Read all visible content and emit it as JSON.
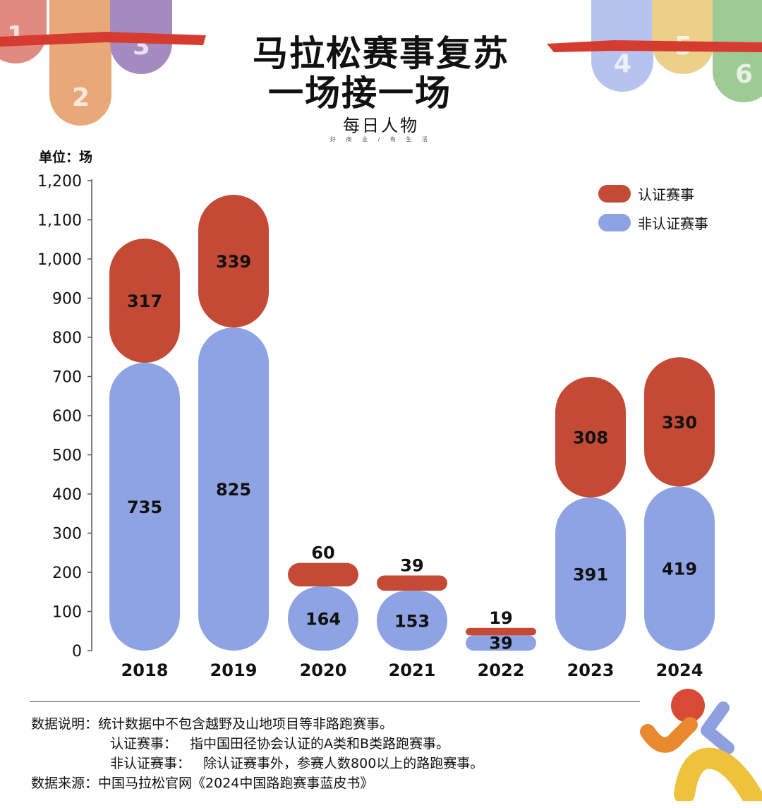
{
  "header": {
    "title_line1": "马拉松赛事复苏",
    "title_line2": "一场接一场",
    "brand": "每日人物",
    "brand_sub": "好 商 业 / 有 生 活"
  },
  "decorations": {
    "numbers": [
      "1",
      "2",
      "3",
      "4",
      "5",
      "6"
    ],
    "colors": [
      "#e08a80",
      "#e8a878",
      "#a48ac0",
      "#b6c3ee",
      "#ecd08a",
      "#9ecb94"
    ],
    "ribbon_color": "#d63b30"
  },
  "chart_data": {
    "type": "bar",
    "stacked": true,
    "unit_label": "单位：场",
    "categories": [
      "2018",
      "2019",
      "2020",
      "2021",
      "2022",
      "2023",
      "2024"
    ],
    "series": [
      {
        "name": "非认证赛事",
        "color": "#8ea3e3",
        "values": [
          735,
          825,
          164,
          153,
          39,
          391,
          419
        ]
      },
      {
        "name": "认证赛事",
        "color": "#c44a36",
        "values": [
          317,
          339,
          60,
          39,
          19,
          308,
          330
        ]
      }
    ],
    "yticks": [
      "0",
      "100",
      "200",
      "300",
      "400",
      "500",
      "600",
      "700",
      "800",
      "900",
      "1,000",
      "1,100",
      "1,200"
    ],
    "ylim": [
      0,
      1200
    ],
    "legend_position": "top-right",
    "grid": false
  },
  "notes": {
    "desc_label": "数据说明：",
    "desc_text": "统计数据中不包含越野及山地项目等非路跑赛事。",
    "cert_label": "认证赛事：",
    "cert_text": "指中国田径协会认证的A类和B类路跑赛事。",
    "noncert_label": "非认证赛事：",
    "noncert_text": "除认证赛事外，参赛人数800以上的路跑赛事。",
    "source_label": "数据来源：",
    "source_text": "中国马拉松官网《2024中国路跑赛事蓝皮书》"
  },
  "logo_colors": [
    "#d84a36",
    "#e8892e",
    "#8fa0e0",
    "#efc23c"
  ]
}
